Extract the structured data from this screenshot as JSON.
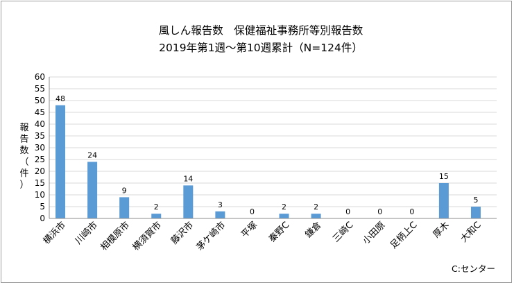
{
  "chart_data": {
    "type": "bar",
    "title": "風しん報告数　保健福祉事務所等別報告数",
    "subtitle": "2019年第1週～第10週累計（N=124件）",
    "ylabel_chars": [
      "報",
      "告",
      "数",
      "（",
      "件",
      "）"
    ],
    "ylim": [
      0,
      60
    ],
    "yticks": [
      0,
      5,
      10,
      15,
      20,
      25,
      30,
      35,
      40,
      45,
      50,
      55,
      60
    ],
    "grid": true,
    "categories": [
      "横浜市",
      "川崎市",
      "相模原市",
      "横須賀市",
      "藤沢市",
      "茅ケ崎市",
      "平塚",
      "秦野C",
      "鎌倉",
      "三崎C",
      "小田原",
      "足柄上C",
      "厚木",
      "大和C"
    ],
    "values": [
      48,
      24,
      9,
      2,
      14,
      3,
      0,
      2,
      2,
      0,
      0,
      0,
      15,
      5
    ],
    "bar_color": "#5b9bd5",
    "note": "C:センター"
  }
}
